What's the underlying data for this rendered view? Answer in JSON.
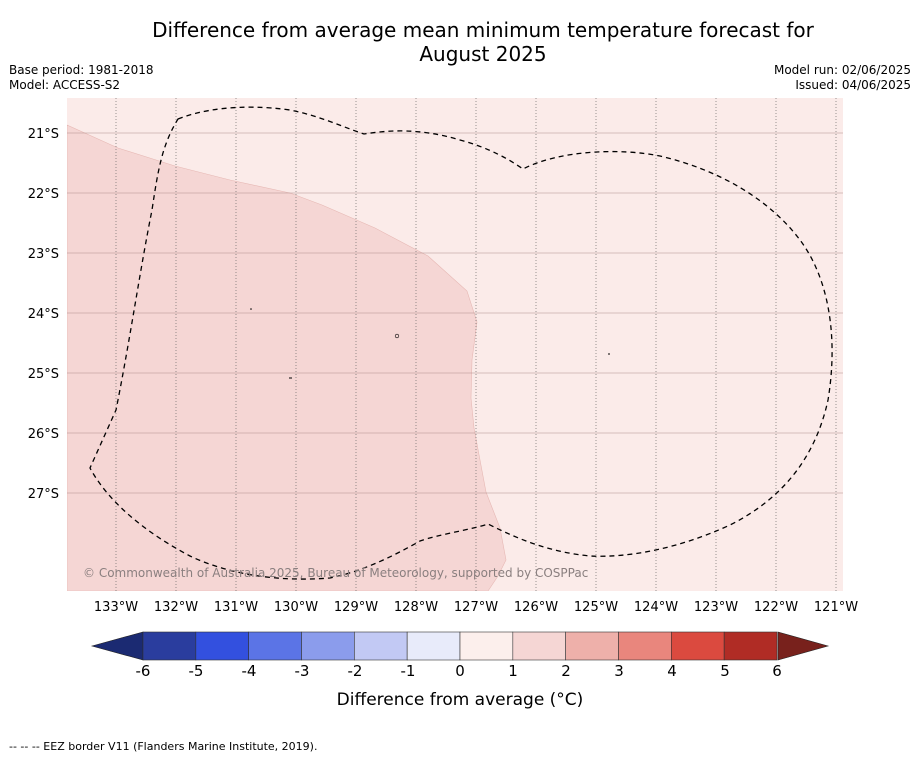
{
  "title_line1": "Difference from average mean minimum temperature forecast for",
  "title_line2": "August 2025",
  "base_period": "Base period: 1981-2018",
  "model": "Model: ACCESS-S2",
  "model_run": "Model run: 02/06/2025",
  "issued": "Issued: 04/06/2025",
  "map": {
    "lon_labels": [
      "133°W",
      "132°W",
      "131°W",
      "130°W",
      "129°W",
      "128°W",
      "127°W",
      "126°W",
      "125°W",
      "124°W",
      "123°W",
      "122°W",
      "121°W"
    ],
    "lat_labels": [
      "21°S",
      "22°S",
      "23°S",
      "24°S",
      "25°S",
      "26°S",
      "27°S"
    ],
    "copyright": "© Commonwealth of Australia 2025, Bureau of Meteorology, supported by COSPPac",
    "category_colors": {
      "0_to_1": "#fbebe9",
      "1_to_2": "#f5d6d4"
    }
  },
  "colorbar": {
    "ticks": [
      "-6",
      "-5",
      "-4",
      "-3",
      "-2",
      "-1",
      "0",
      "1",
      "2",
      "3",
      "4",
      "5",
      "6"
    ],
    "colors": [
      "#2a3d9e",
      "#3350df",
      "#5b74e6",
      "#8b9cec",
      "#c2c9f4",
      "#e8ebfa",
      "#fcefec",
      "#f5d6d4",
      "#eeb0aa",
      "#e9867d",
      "#db4a3f",
      "#b02c25"
    ],
    "under_color": "#1b2a72",
    "over_color": "#78211c",
    "label": "Difference from average (°C)"
  },
  "footnote": "-- -- -- EEZ border V11 (Flanders Marine Institute, 2019)."
}
